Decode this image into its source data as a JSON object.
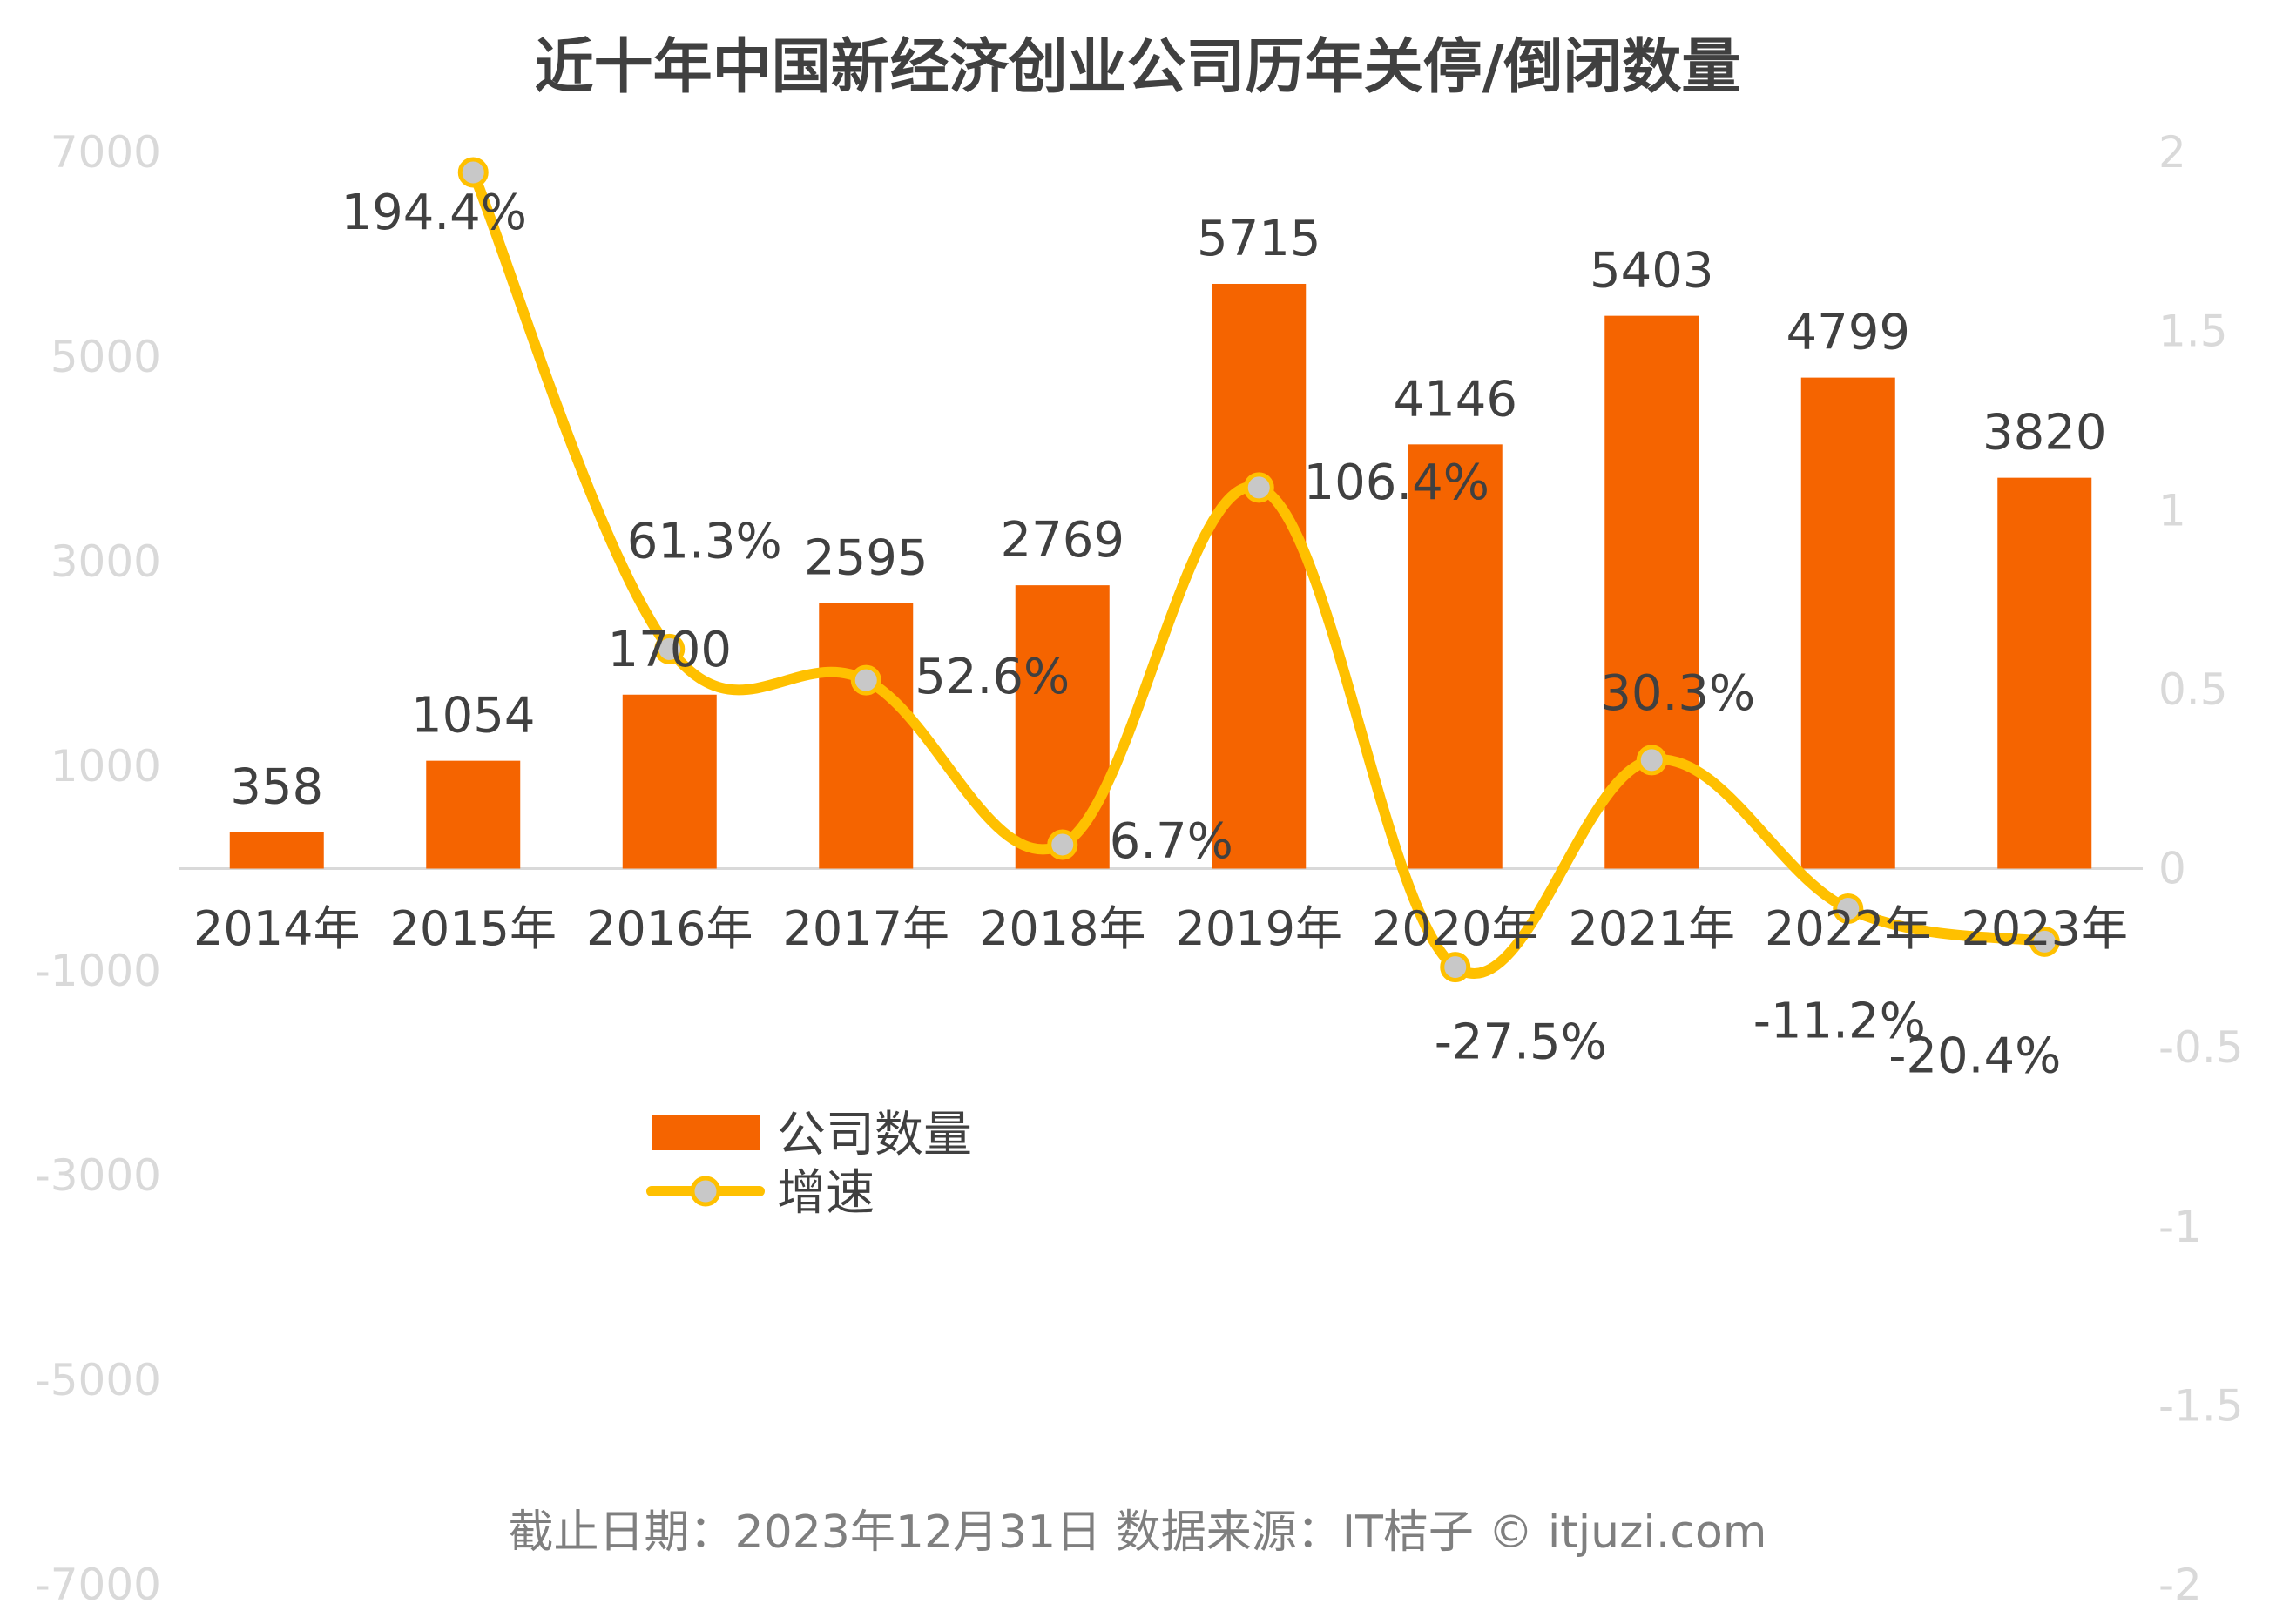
{
  "chart_data": {
    "type": "bar",
    "title": "近十年中国新经济创业公司历年关停/倒闭数量",
    "categories": [
      "2014年",
      "2015年",
      "2016年",
      "2017年",
      "2018年",
      "2019年",
      "2020年",
      "2021年",
      "2022年",
      "2023年"
    ],
    "series": [
      {
        "name": "公司数量",
        "type": "bar",
        "axis": "left",
        "color": "#f56400",
        "values": [
          358,
          1054,
          1700,
          2595,
          2769,
          5715,
          4146,
          5403,
          4799,
          3820
        ],
        "labels": [
          "358",
          "1054",
          "1700",
          "2595",
          "2769",
          "5715",
          "4146",
          "5403",
          "4799",
          "3820"
        ]
      },
      {
        "name": "增速",
        "type": "line",
        "axis": "right",
        "color": "#ffc000",
        "marker_color": "#c8c8c8",
        "values": [
          null,
          1.944,
          0.613,
          0.526,
          0.067,
          1.064,
          -0.275,
          0.303,
          -0.112,
          -0.204
        ],
        "labels": [
          "",
          "194.4%",
          "61.3%",
          "52.6%",
          "6.7%",
          "106.4%",
          "-27.5%",
          "30.3%",
          "-11.2%",
          "-20.4%"
        ]
      }
    ],
    "y_left": {
      "ylim": [
        -7000,
        7000
      ],
      "ticks": [
        7000,
        5000,
        3000,
        1000,
        -1000,
        -3000,
        -5000,
        -7000
      ],
      "tick_labels": [
        "7000",
        "5000",
        "3000",
        "1000",
        "-1000",
        "-3000",
        "-5000",
        "-7000"
      ]
    },
    "y_right": {
      "ylim": [
        -2,
        2
      ],
      "ticks": [
        2,
        1.5,
        1,
        0.5,
        0,
        -0.5,
        -1,
        -1.5,
        -2
      ],
      "tick_labels": [
        "2",
        "1.5",
        "1",
        "0.5",
        "0",
        "-0.5",
        "-1",
        "-1.5",
        "-2"
      ]
    },
    "legend": {
      "position": "center-bottom",
      "items": [
        "公司数量",
        "增速"
      ]
    },
    "footer": "截止日期：2023年12月31日    数据来源：IT桔子 © itjuzi.com"
  }
}
